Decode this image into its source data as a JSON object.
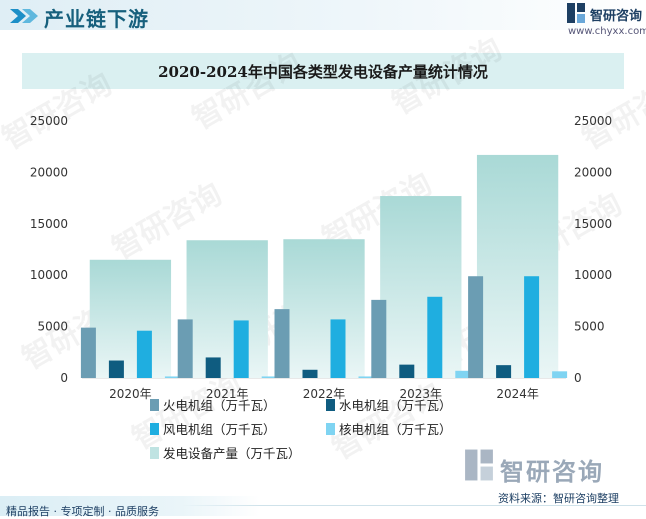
{
  "header": {
    "title": "产业链下游"
  },
  "brand": {
    "name": "智研咨询",
    "url": "www.chyxx.com"
  },
  "watermark": {
    "text": "智研咨询"
  },
  "footer": {
    "left_text": "精品报告 · 专项定制 · 品质服务",
    "source": "资料来源：智研咨询整理"
  },
  "colors": {
    "thermal": "#6b9db3",
    "hydro": "#0f5c80",
    "wind": "#1faee0",
    "nuclear": "#7fd4f2",
    "total": "#bfe3e2",
    "axis_text": "#333333"
  },
  "chart_data": {
    "type": "bar",
    "title": "2020-2024年中国各类型发电设备产量统计情况",
    "categories": [
      "2020年",
      "2021年",
      "2022年",
      "2023年",
      "2024年"
    ],
    "ylim": [
      0,
      25000
    ],
    "yticks": [
      0,
      5000,
      10000,
      15000,
      20000,
      25000
    ],
    "y2ticks": [
      0,
      5000,
      10000,
      15000,
      20000,
      25000
    ],
    "series": [
      {
        "name": "火电机组（万千瓦）",
        "values": [
          4900,
          5700,
          6700,
          7600,
          9900
        ]
      },
      {
        "name": "水电机组（万千瓦）",
        "values": [
          1700,
          2000,
          800,
          1300,
          1250
        ]
      },
      {
        "name": "风电机组（万千瓦）",
        "values": [
          4600,
          5600,
          5700,
          7900,
          9900
        ]
      },
      {
        "name": "核电机组（万千瓦）",
        "values": [
          150,
          150,
          150,
          700,
          650
        ]
      },
      {
        "name": "发电设备产量（万千瓦）",
        "values": [
          11500,
          13400,
          13500,
          17700,
          21700
        ]
      }
    ]
  }
}
